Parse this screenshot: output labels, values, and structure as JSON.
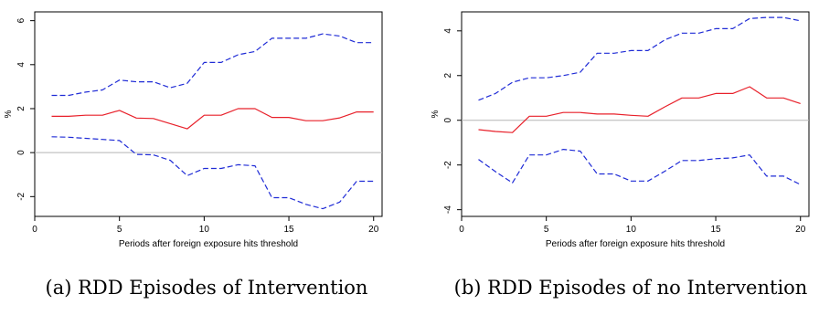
{
  "chart_data": [
    {
      "type": "line",
      "caption": "(a) RDD Episodes of Intervention",
      "xlabel": "Periods after foreign exposure hits threshold",
      "ylabel": "%",
      "xlim": [
        0,
        20.5
      ],
      "ylim": [
        -2.9,
        6.4
      ],
      "xticks": [
        0,
        5,
        10,
        15,
        20
      ],
      "yticks": [
        -2,
        0,
        2,
        4,
        6
      ],
      "zero_line": true,
      "x": [
        1,
        2,
        3,
        4,
        5,
        6,
        7,
        8,
        9,
        10,
        11,
        12,
        13,
        14,
        15,
        16,
        17,
        18,
        19,
        20
      ],
      "series": [
        {
          "role": "estimate",
          "color": "#e8202a",
          "style": "solid",
          "values": [
            1.65,
            1.65,
            1.7,
            1.7,
            1.92,
            1.57,
            1.55,
            1.32,
            1.08,
            1.7,
            1.7,
            2.0,
            2.0,
            1.6,
            1.6,
            1.45,
            1.45,
            1.58,
            1.85,
            1.85
          ]
        },
        {
          "role": "upper",
          "color": "#1f2bd6",
          "style": "dashed",
          "values": [
            2.6,
            2.6,
            2.75,
            2.85,
            3.3,
            3.22,
            3.22,
            2.95,
            3.15,
            4.1,
            4.1,
            4.45,
            4.6,
            5.2,
            5.2,
            5.2,
            5.4,
            5.3,
            5.0,
            5.0
          ]
        },
        {
          "role": "lower",
          "color": "#1f2bd6",
          "style": "dashed",
          "values": [
            0.72,
            0.7,
            0.65,
            0.6,
            0.55,
            -0.08,
            -0.1,
            -0.35,
            -1.05,
            -0.72,
            -0.72,
            -0.55,
            -0.6,
            -2.05,
            -2.05,
            -2.35,
            -2.55,
            -2.25,
            -1.3,
            -1.3
          ]
        }
      ]
    },
    {
      "type": "line",
      "caption": "(b) RDD Episodes of no Intervention",
      "xlabel": "Periods after foreign exposure hits threshold",
      "ylabel": "%",
      "xlim": [
        0,
        20.5
      ],
      "ylim": [
        -4.3,
        4.85
      ],
      "xticks": [
        0,
        5,
        10,
        15,
        20
      ],
      "yticks": [
        -4,
        -2,
        0,
        2,
        4
      ],
      "zero_line": true,
      "x": [
        1,
        2,
        3,
        4,
        5,
        6,
        7,
        8,
        9,
        10,
        11,
        12,
        13,
        14,
        15,
        16,
        17,
        18,
        19,
        20
      ],
      "series": [
        {
          "role": "estimate",
          "color": "#e8202a",
          "style": "solid",
          "values": [
            -0.42,
            -0.5,
            -0.55,
            0.18,
            0.18,
            0.35,
            0.35,
            0.28,
            0.28,
            0.22,
            0.18,
            0.6,
            1.0,
            1.0,
            1.2,
            1.2,
            1.5,
            1.0,
            1.0,
            0.75
          ]
        },
        {
          "role": "upper",
          "color": "#1f2bd6",
          "style": "dashed",
          "values": [
            0.9,
            1.2,
            1.7,
            1.9,
            1.9,
            2.0,
            2.15,
            3.0,
            3.0,
            3.12,
            3.12,
            3.6,
            3.9,
            3.9,
            4.1,
            4.1,
            4.55,
            4.6,
            4.6,
            4.45
          ]
        },
        {
          "role": "lower",
          "color": "#1f2bd6",
          "style": "dashed",
          "values": [
            -1.75,
            -2.3,
            -2.8,
            -1.55,
            -1.55,
            -1.3,
            -1.38,
            -2.4,
            -2.4,
            -2.72,
            -2.72,
            -2.28,
            -1.8,
            -1.8,
            -1.72,
            -1.68,
            -1.55,
            -2.5,
            -2.5,
            -2.88
          ]
        }
      ]
    }
  ]
}
